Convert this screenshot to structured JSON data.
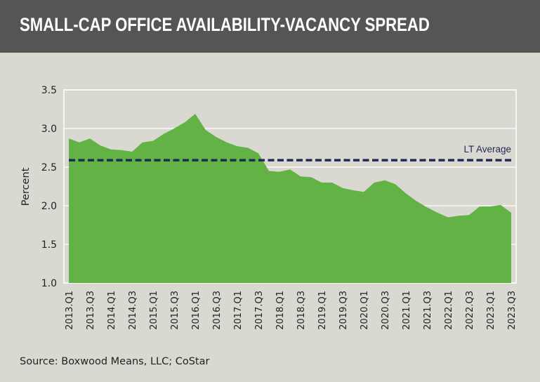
{
  "header": {
    "title": "SMALL-CAP OFFICE AVAILABILITY-VACANCY SPREAD"
  },
  "source": "Source: Boxwood Means, LLC; CoStar",
  "colors": {
    "header_bg": "#555555",
    "background": "#d9d8d1",
    "area": "#63b246",
    "average_line": "#1f2a55",
    "grid": "#ffffff"
  },
  "chart_data": {
    "type": "area",
    "title": "SMALL-CAP OFFICE AVAILABILITY-VACANCY SPREAD",
    "ylabel": "Percent",
    "xlabel": "",
    "ylim": [
      1.0,
      3.5
    ],
    "yticks": [
      "1.0",
      "1.5",
      "2.0",
      "2.5",
      "3.0",
      "3.5"
    ],
    "grid": true,
    "categories": [
      "2013.Q1",
      "2013.Q2",
      "2013.Q3",
      "2013.Q4",
      "2014.Q1",
      "2014.Q2",
      "2014.Q3",
      "2014.Q4",
      "2015.Q1",
      "2015.Q2",
      "2015.Q3",
      "2015.Q4",
      "2016.Q1",
      "2016.Q2",
      "2016.Q3",
      "2016.Q4",
      "2017.Q1",
      "2017.Q2",
      "2017.Q3",
      "2017.Q4",
      "2018.Q1",
      "2018.Q2",
      "2018.Q3",
      "2018.Q4",
      "2019.Q1",
      "2019.Q2",
      "2019.Q3",
      "2019.Q4",
      "2020.Q1",
      "2020.Q2",
      "2020.Q3",
      "2020.Q4",
      "2021.Q1",
      "2021.Q2",
      "2021.Q3",
      "2021.Q4",
      "2022.Q1",
      "2022.Q2",
      "2022.Q3",
      "2022.Q4",
      "2023.Q1",
      "2023.Q2",
      "2023.Q3"
    ],
    "tick_labels_shown": "every other quarter (Q1, Q3)",
    "values": [
      2.87,
      2.82,
      2.87,
      2.78,
      2.73,
      2.72,
      2.7,
      2.82,
      2.84,
      2.93,
      3.0,
      3.08,
      3.19,
      2.98,
      2.89,
      2.82,
      2.77,
      2.75,
      2.68,
      2.45,
      2.44,
      2.47,
      2.38,
      2.37,
      2.3,
      2.3,
      2.23,
      2.2,
      2.18,
      2.3,
      2.33,
      2.28,
      2.16,
      2.06,
      1.98,
      1.91,
      1.85,
      1.87,
      1.88,
      1.99,
      1.99,
      2.01,
      1.91
    ],
    "reference_line": {
      "label": "LT Average",
      "value": 2.59,
      "style": "dashed"
    }
  }
}
